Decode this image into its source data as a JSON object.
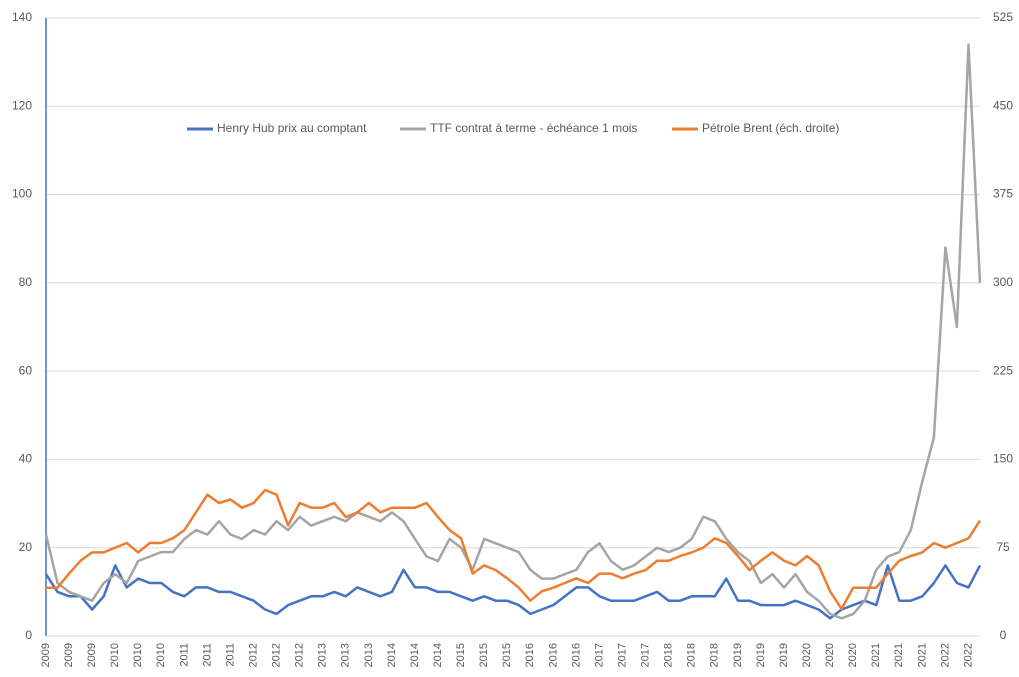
{
  "chart_data": {
    "type": "line",
    "categories": [
      "2009",
      null,
      "2009",
      null,
      "2009",
      null,
      "2010",
      null,
      "2010",
      null,
      "2010",
      null,
      "2011",
      null,
      "2011",
      null,
      "2011",
      null,
      "2012",
      null,
      "2012",
      null,
      "2012",
      null,
      "2013",
      null,
      "2013",
      null,
      "2013",
      null,
      "2014",
      null,
      "2014",
      null,
      "2014",
      null,
      "2015",
      null,
      "2015",
      null,
      "2015",
      null,
      "2016",
      null,
      "2016",
      null,
      "2016",
      null,
      "2017",
      null,
      "2017",
      null,
      "2017",
      null,
      "2018",
      null,
      "2018",
      null,
      "2018",
      null,
      "2019",
      null,
      "2019",
      null,
      "2019",
      null,
      "2020",
      null,
      "2020",
      null,
      "2020",
      null,
      "2021",
      null,
      "2021",
      null,
      "2021",
      null,
      "2022",
      null,
      "2022",
      null
    ],
    "series": [
      {
        "name": "Henry Hub prix au comptant",
        "color": "#4472c4",
        "values": [
          14,
          10,
          9,
          9,
          6,
          9,
          16,
          11,
          13,
          12,
          12,
          10,
          9,
          11,
          11,
          10,
          10,
          9,
          8,
          6,
          5,
          7,
          8,
          9,
          9,
          10,
          9,
          11,
          10,
          9,
          10,
          15,
          11,
          11,
          10,
          10,
          9,
          8,
          9,
          8,
          8,
          7,
          5,
          6,
          7,
          9,
          11,
          11,
          9,
          8,
          8,
          8,
          9,
          10,
          8,
          8,
          9,
          9,
          9,
          13,
          8,
          8,
          7,
          7,
          7,
          8,
          7,
          6,
          4,
          6,
          7,
          8,
          7,
          16,
          8,
          8,
          9,
          12,
          16,
          12,
          11,
          16
        ]
      },
      {
        "name": "TTF contrat à terme - échéance 1 mois",
        "color": "#a5a5a5",
        "values": [
          23,
          12,
          10,
          9,
          8,
          12,
          14,
          12,
          17,
          18,
          19,
          19,
          22,
          24,
          23,
          26,
          23,
          22,
          24,
          23,
          26,
          24,
          27,
          25,
          26,
          27,
          26,
          28,
          27,
          26,
          28,
          26,
          22,
          18,
          17,
          22,
          20,
          15,
          22,
          21,
          20,
          19,
          15,
          13,
          13,
          14,
          15,
          19,
          21,
          17,
          15,
          16,
          18,
          20,
          19,
          20,
          22,
          27,
          26,
          22,
          19,
          17,
          12,
          14,
          11,
          14,
          10,
          8,
          5,
          4,
          5,
          8,
          15,
          18,
          19,
          24,
          35,
          45,
          88,
          70,
          134,
          80
        ]
      },
      {
        "name": "Pétrole Brent (éch. droite)",
        "color": "#ed7d31",
        "axis": "y2",
        "values": [
          41,
          41,
          53,
          64,
          71,
          71,
          75,
          79,
          71,
          79,
          79,
          83,
          90,
          105,
          120,
          113,
          116,
          109,
          113,
          124,
          120,
          94,
          113,
          109,
          109,
          113,
          101,
          105,
          113,
          105,
          109,
          109,
          109,
          113,
          101,
          90,
          83,
          53,
          60,
          56,
          49,
          41,
          30,
          38,
          41,
          45,
          49,
          45,
          53,
          53,
          49,
          53,
          56,
          64,
          64,
          68,
          71,
          75,
          83,
          79,
          68,
          56,
          64,
          71,
          64,
          60,
          68,
          60,
          38,
          23,
          41,
          41,
          41,
          53,
          64,
          68,
          71,
          79,
          75,
          79,
          83,
          98
        ]
      }
    ],
    "ylim": [
      0,
      140
    ],
    "yticks": [
      0,
      20,
      40,
      60,
      80,
      100,
      120,
      140
    ],
    "y2lim": [
      0,
      525
    ],
    "y2ticks": [
      0,
      75,
      150,
      225,
      300,
      375,
      450,
      525
    ],
    "grid": true,
    "legend": "top"
  }
}
